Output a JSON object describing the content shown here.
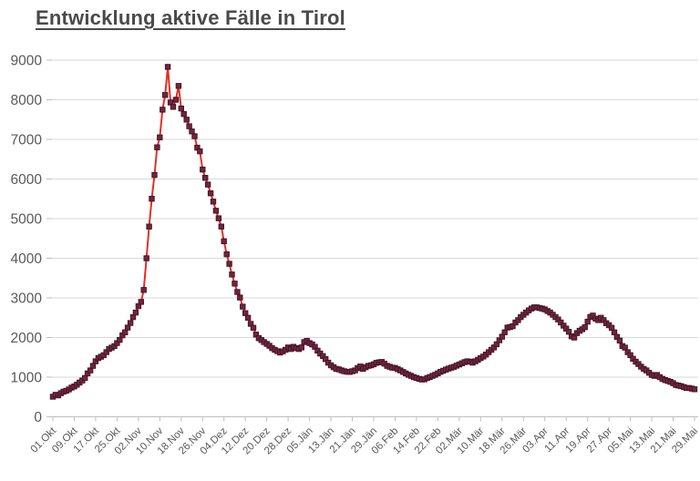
{
  "title": "Entwicklung aktive Fälle in Tirol",
  "chart_data": {
    "type": "line",
    "title": "Entwicklung aktive Fälle in Tirol",
    "xlabel": "",
    "ylabel": "",
    "ylim": [
      0,
      9000
    ],
    "y_ticks": [
      0,
      1000,
      2000,
      3000,
      4000,
      5000,
      6000,
      7000,
      8000,
      9000
    ],
    "x_tick_interval_days": 8,
    "x_tick_labels": [
      "01.Okt",
      "09.Okt",
      "17.Okt",
      "25.Okt",
      "02.Nov",
      "10.Nov",
      "18.Nov",
      "26.Nov",
      "04.Dez",
      "12.Dez",
      "20.Dez",
      "28.Dez",
      "05.Jän",
      "13.Jän",
      "21.Jän",
      "29.Jän",
      "06.Feb",
      "14.Feb",
      "22.Feb",
      "02.Mär",
      "10.Mär",
      "18.Mär",
      "26.Mär",
      "03.Apr",
      "11.Apr",
      "19.Apr",
      "27.Apr",
      "05.Mai",
      "13.Mai",
      "21.Mai",
      "29.Mai"
    ],
    "grid": "horizontal",
    "legend": "none",
    "line_color": "#e33020",
    "marker_shape": "square",
    "marker_color": "#70263c",
    "marker_border_color": "#45152a",
    "axis_label_color": "#595959",
    "gridline_color": "#d9d9d9",
    "axis_line_color": "#bfbfbf",
    "title_color": "#4a4a4a",
    "values": [
      505,
      555,
      540,
      595,
      635,
      655,
      690,
      735,
      765,
      810,
      865,
      915,
      980,
      1095,
      1170,
      1285,
      1400,
      1480,
      1515,
      1555,
      1630,
      1710,
      1745,
      1785,
      1860,
      1940,
      2055,
      2130,
      2250,
      2365,
      2515,
      2630,
      2790,
      2900,
      3200,
      4000,
      4800,
      5500,
      6100,
      6800,
      7050,
      7750,
      8120,
      8830,
      7930,
      7820,
      8000,
      8350,
      7780,
      7640,
      7500,
      7330,
      7200,
      7080,
      6790,
      6700,
      6240,
      6030,
      5860,
      5640,
      5430,
      5200,
      5010,
      4800,
      4430,
      4100,
      3860,
      3590,
      3360,
      3150,
      3010,
      2780,
      2615,
      2500,
      2345,
      2245,
      2075,
      1985,
      1935,
      1885,
      1840,
      1790,
      1730,
      1690,
      1655,
      1620,
      1650,
      1690,
      1750,
      1710,
      1765,
      1730,
      1710,
      1750,
      1885,
      1915,
      1860,
      1825,
      1765,
      1670,
      1595,
      1530,
      1455,
      1365,
      1300,
      1250,
      1210,
      1195,
      1170,
      1150,
      1135,
      1130,
      1150,
      1170,
      1225,
      1270,
      1210,
      1250,
      1285,
      1300,
      1325,
      1360,
      1375,
      1385,
      1340,
      1285,
      1263,
      1240,
      1233,
      1200,
      1171,
      1130,
      1094,
      1060,
      1032,
      1000,
      979,
      956,
      940,
      945,
      979,
      1002,
      1032,
      1060,
      1094,
      1133,
      1160,
      1190,
      1215,
      1240,
      1260,
      1290,
      1320,
      1350,
      1380,
      1400,
      1390,
      1365,
      1400,
      1440,
      1480,
      1520,
      1570,
      1630,
      1690,
      1750,
      1830,
      1930,
      2020,
      2130,
      2250,
      2265,
      2285,
      2380,
      2440,
      2515,
      2575,
      2630,
      2685,
      2730,
      2760,
      2760,
      2745,
      2730,
      2710,
      2670,
      2630,
      2575,
      2515,
      2455,
      2380,
      2300,
      2225,
      2145,
      2030,
      2000,
      2110,
      2170,
      2210,
      2260,
      2400,
      2520,
      2555,
      2475,
      2440,
      2500,
      2440,
      2360,
      2310,
      2245,
      2130,
      2015,
      1925,
      1785,
      1745,
      1630,
      1555,
      1465,
      1390,
      1330,
      1265,
      1210,
      1170,
      1110,
      1055,
      1032,
      1055,
      1000,
      956,
      926,
      903,
      880,
      848,
      802,
      788,
      772,
      749,
      726,
      726,
      710,
      695
    ]
  }
}
